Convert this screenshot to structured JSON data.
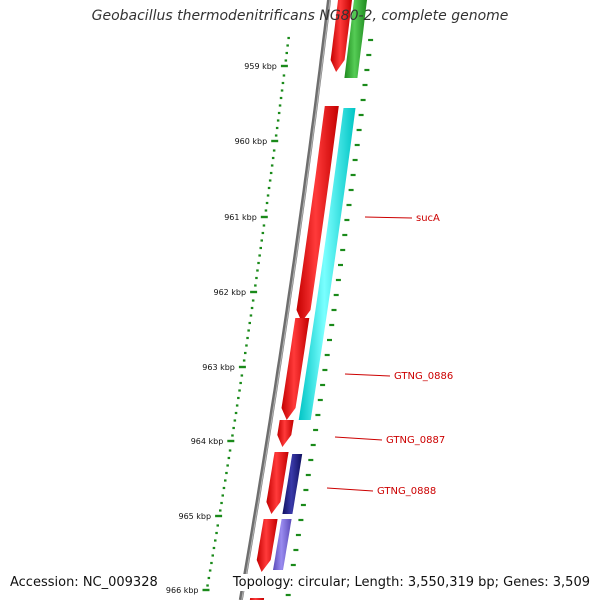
{
  "title": "Geobacillus thermodenitrificans NG80-2, complete genome",
  "footer": {
    "accession": "Accession: NC_009328",
    "summary": "Topology: circular; Length: 3,550,319 bp; Genes: 3,509"
  },
  "colors": {
    "backbone": "#808080",
    "tick": "#1a8a1a",
    "cds_forward": "#ee1111",
    "hit_green": "#33aa33",
    "hit_cyan": "#00e5e5",
    "hit_navy": "#1a1a80",
    "hit_purple": "#7a6ad8",
    "label": "#cc0000"
  },
  "scale": {
    "unit": "kbp",
    "ticks": [
      {
        "kbp": 959,
        "label": "959 kbp"
      },
      {
        "kbp": 960,
        "label": "960 kbp"
      },
      {
        "kbp": 961,
        "label": "961 kbp"
      },
      {
        "kbp": 962,
        "label": "962 kbp"
      },
      {
        "kbp": 963,
        "label": "963 kbp"
      },
      {
        "kbp": 964,
        "label": "964 kbp"
      },
      {
        "kbp": 965,
        "label": "965 kbp"
      },
      {
        "kbp": 966,
        "label": "966 kbp"
      }
    ]
  },
  "features": [
    {
      "name": "sucA",
      "label": "sucA"
    },
    {
      "name": "GTNG_0886",
      "label": "GTNG_0886"
    },
    {
      "name": "GTNG_0887",
      "label": "GTNG_0887"
    },
    {
      "name": "GTNG_0888",
      "label": "GTNG_0888"
    }
  ]
}
